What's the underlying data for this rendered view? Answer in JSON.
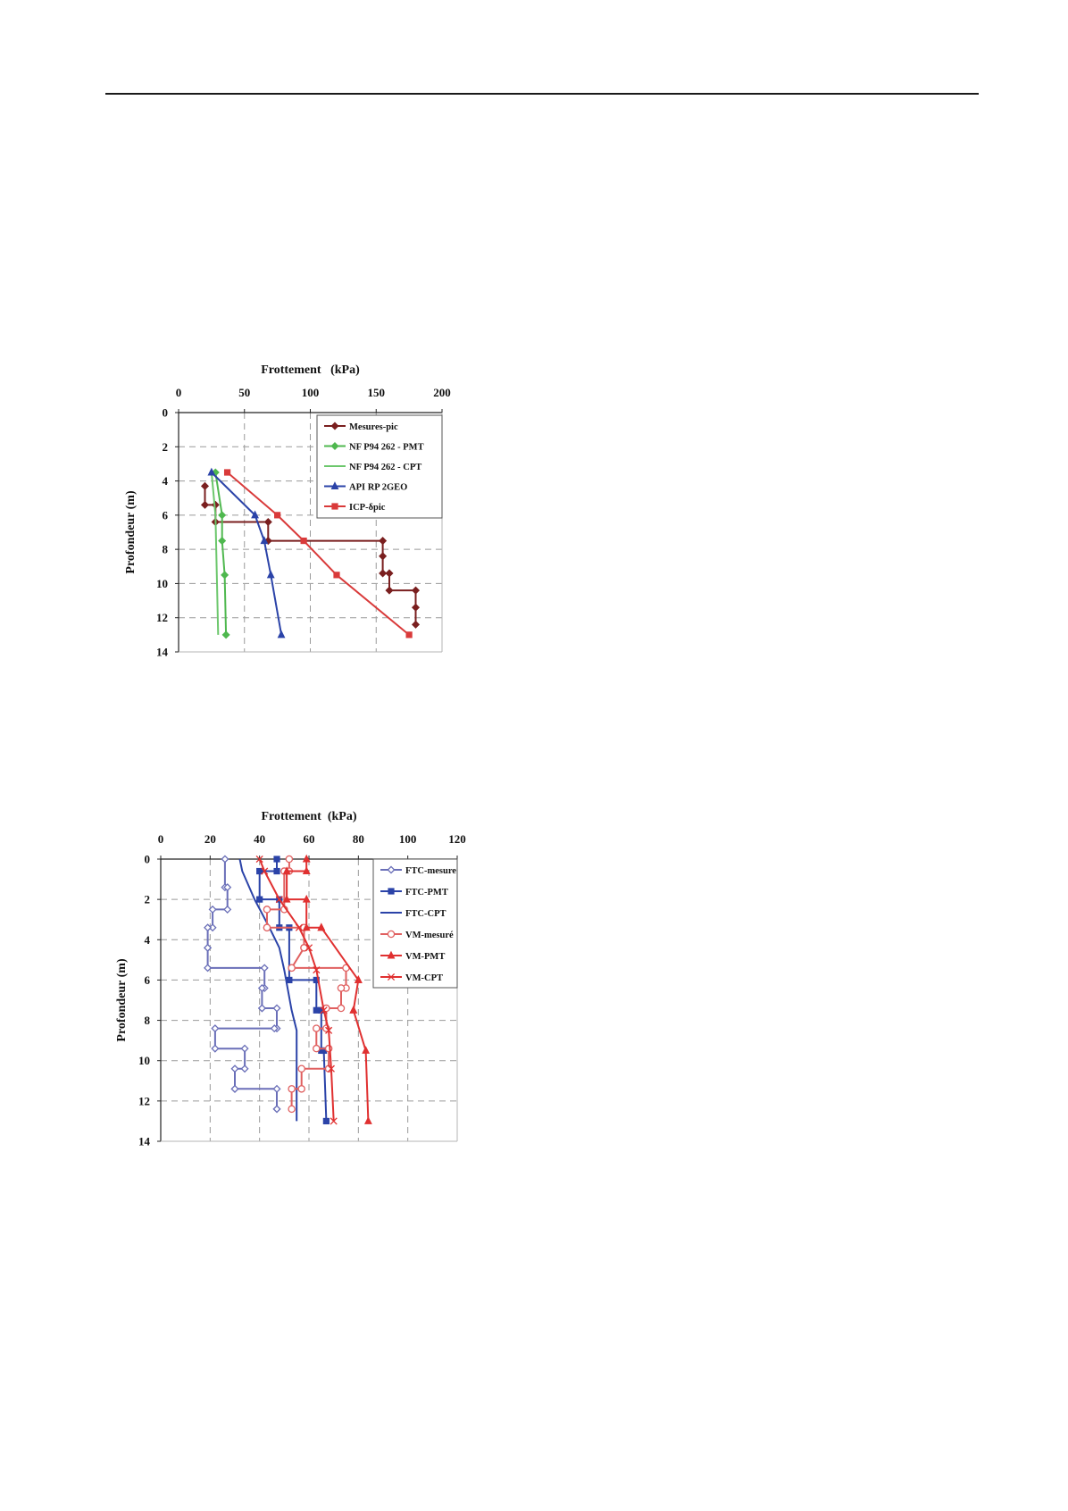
{
  "chart_data": [
    {
      "type": "line",
      "orientation": "depth-profile",
      "title": "Frottement   (kPa)",
      "xlabel": "Frottement   (kPa)",
      "ylabel": "Profondeur (m)",
      "xlim": [
        0,
        200
      ],
      "ylim": [
        0,
        14
      ],
      "y_reversed": true,
      "xticks": [
        "0",
        "50",
        "100",
        "150",
        "200"
      ],
      "yticks": [
        "0",
        "2",
        "4",
        "6",
        "8",
        "10",
        "12",
        "14"
      ],
      "xtick_values": [
        0,
        50,
        100,
        150,
        200
      ],
      "ytick_values": [
        0,
        2,
        4,
        6,
        8,
        10,
        12,
        14
      ],
      "grid": true,
      "legend": "top-right",
      "series": [
        {
          "name": "Mesures-pic",
          "color": "#7a1f1f",
          "marker": "diamond",
          "x": [
            20,
            20,
            28,
            28,
            28,
            68,
            68,
            155,
            155,
            155,
            160,
            160,
            180,
            180,
            180
          ],
          "y": [
            4.3,
            5.4,
            5.4,
            6.4,
            6.4,
            6.4,
            7.5,
            7.5,
            8.4,
            9.4,
            9.4,
            10.4,
            10.4,
            11.4,
            12.4
          ]
        },
        {
          "name": "NF P94 262 - PMT",
          "color": "#4fb84f",
          "marker": "diamond",
          "x": [
            28,
            33,
            33,
            35,
            36
          ],
          "y": [
            3.5,
            6,
            7.5,
            9.5,
            13
          ]
        },
        {
          "name": "NF P94 262 - CPT",
          "color": "#6cc76c",
          "marker": "none",
          "x": [
            25,
            28,
            29,
            30
          ],
          "y": [
            3.5,
            6,
            9.5,
            13
          ]
        },
        {
          "name": "API RP 2GEO",
          "color": "#2b43a8",
          "marker": "triangle",
          "x": [
            25,
            58,
            65,
            70,
            78
          ],
          "y": [
            3.5,
            6,
            7.5,
            9.5,
            13
          ]
        },
        {
          "name": "ICP-δpic",
          "color": "#d93a3a",
          "marker": "square",
          "x": [
            37,
            75,
            95,
            120,
            175
          ],
          "y": [
            3.5,
            6,
            7.5,
            9.5,
            13
          ]
        }
      ]
    },
    {
      "type": "line",
      "orientation": "depth-profile",
      "title": "Frottement  (kPa)",
      "xlabel": "Frottement  (kPa)",
      "ylabel": "Profondeur (m)",
      "xlim": [
        0,
        120
      ],
      "ylim": [
        0,
        14
      ],
      "y_reversed": true,
      "xticks": [
        "0",
        "20",
        "40",
        "60",
        "80",
        "100",
        "120"
      ],
      "yticks": [
        "0",
        "2",
        "4",
        "6",
        "8",
        "10",
        "12",
        "14"
      ],
      "xtick_values": [
        0,
        20,
        40,
        60,
        80,
        100,
        120
      ],
      "ytick_values": [
        0,
        2,
        4,
        6,
        8,
        10,
        12,
        14
      ],
      "grid": true,
      "legend": "top-right",
      "series": [
        {
          "name": "FTC-mesure",
          "color": "#6a6fb8",
          "marker": "open-diamond",
          "x": [
            26,
            26,
            27,
            27,
            21,
            21,
            19,
            19,
            19,
            19,
            42,
            42,
            41,
            41,
            41,
            47,
            47,
            46,
            22,
            22,
            34,
            34,
            30,
            30,
            30,
            47,
            47,
            47
          ],
          "y": [
            0,
            1.4,
            1.4,
            2.5,
            2.5,
            3.4,
            3.4,
            4.4,
            4.4,
            5.4,
            5.4,
            6.4,
            6.4,
            7.4,
            7.4,
            7.4,
            8.4,
            8.4,
            8.4,
            9.4,
            9.4,
            10.4,
            10.4,
            11.4,
            11.4,
            11.4,
            12.4,
            12.4
          ]
        },
        {
          "name": "FTC-PMT",
          "color": "#2b43a8",
          "marker": "square",
          "x": [
            47,
            47,
            40,
            40,
            48,
            48,
            52,
            52,
            63,
            63,
            65,
            65,
            66,
            67
          ],
          "y": [
            0,
            0.6,
            0.6,
            2,
            2,
            3.4,
            3.4,
            6,
            6,
            7.5,
            7.5,
            9.5,
            9.5,
            13
          ]
        },
        {
          "name": "FTC-CPT",
          "color": "#2b43a8",
          "marker": "none",
          "x": [
            32,
            33,
            38,
            44,
            48,
            50,
            53,
            55,
            55,
            55
          ],
          "y": [
            0,
            0.6,
            2,
            3.4,
            4.4,
            5.5,
            7.5,
            8.5,
            10.4,
            13
          ]
        },
        {
          "name": "VM-mesuré",
          "color": "#e06060",
          "marker": "open-circle",
          "x": [
            52,
            52,
            50,
            50,
            43,
            43,
            43,
            58,
            58,
            58,
            53,
            53,
            75,
            75,
            73,
            73,
            67,
            67,
            63,
            63,
            68,
            68,
            57,
            57,
            53,
            53
          ],
          "y": [
            0,
            0.6,
            0.6,
            2.5,
            2.5,
            3.4,
            3.4,
            3.4,
            4.4,
            4.4,
            5.4,
            5.4,
            5.4,
            6.4,
            6.4,
            7.4,
            7.4,
            8.4,
            8.4,
            9.4,
            9.4,
            10.4,
            10.4,
            11.4,
            11.4,
            12.4
          ]
        },
        {
          "name": "VM-PMT",
          "color": "#e03030",
          "marker": "triangle",
          "x": [
            59,
            59,
            51,
            51,
            59,
            59,
            65,
            65,
            80,
            80,
            78,
            78,
            83,
            84
          ],
          "y": [
            0,
            0.6,
            0.6,
            2,
            2,
            3.4,
            3.4,
            3.4,
            6,
            6,
            7.5,
            7.5,
            9.5,
            13
          ]
        },
        {
          "name": "VM-CPT",
          "color": "#e03030",
          "marker": "cross",
          "x": [
            40,
            42,
            48,
            56,
            60,
            63,
            66,
            68,
            69,
            70
          ],
          "y": [
            0,
            0.6,
            2,
            3.4,
            4.4,
            5.5,
            7.5,
            8.5,
            10.4,
            13
          ]
        }
      ]
    }
  ]
}
